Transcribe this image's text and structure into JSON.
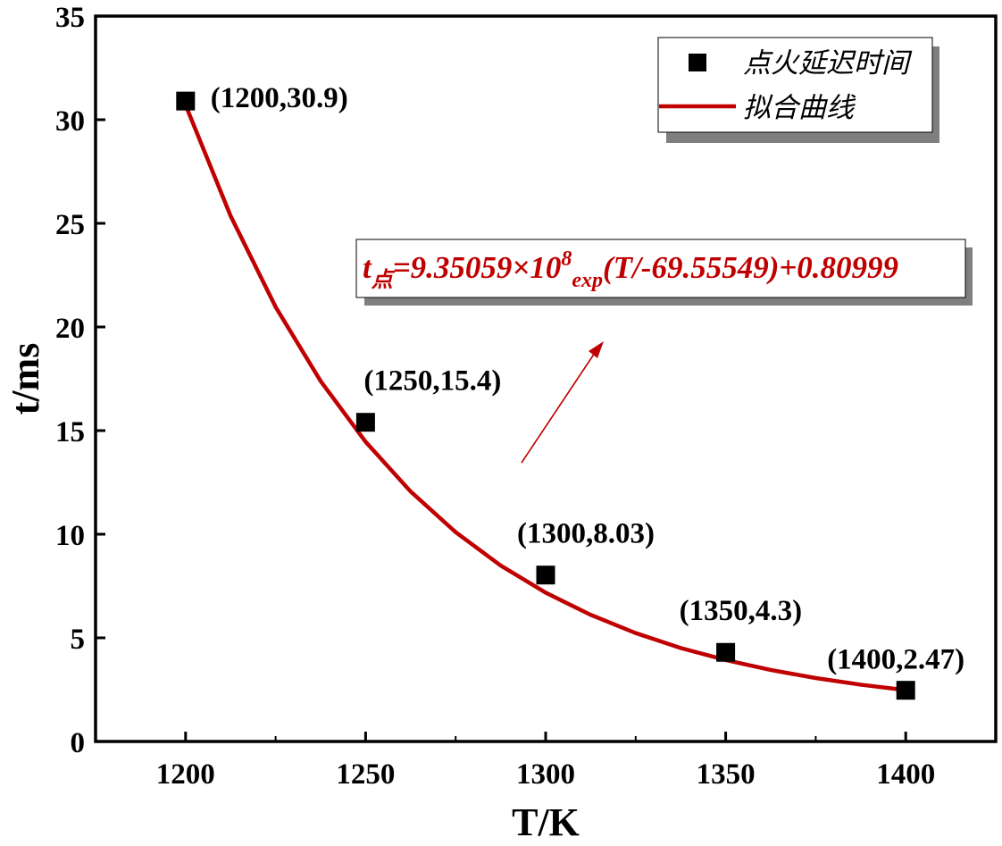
{
  "chart_data": {
    "type": "scatter",
    "xlabel": "T/K",
    "ylabel": "t/ms",
    "xlim": [
      1175,
      1425
    ],
    "ylim": [
      0,
      35
    ],
    "xticks": [
      1200,
      1250,
      1300,
      1350,
      1400
    ],
    "yticks": [
      0,
      5,
      10,
      15,
      20,
      25,
      30,
      35
    ],
    "grid": false,
    "legend_position": "top-right",
    "series": [
      {
        "name": "点火延迟时间",
        "kind": "scatter",
        "color": "#000000",
        "marker": "square",
        "x": [
          1200,
          1250,
          1300,
          1350,
          1400
        ],
        "y": [
          30.9,
          15.4,
          8.03,
          4.3,
          2.47
        ]
      },
      {
        "name": "拟合曲线",
        "kind": "line",
        "color": "#c00000",
        "x": [
          1200,
          1212.5,
          1225,
          1237.5,
          1250,
          1262.5,
          1275,
          1287.5,
          1300,
          1312.5,
          1325,
          1337.5,
          1350,
          1362.5,
          1375,
          1387.5,
          1400
        ],
        "y": [
          30.71,
          25.36,
          20.97,
          17.39,
          14.46,
          12.06,
          10.1,
          8.49,
          7.18,
          6.11,
          5.23,
          4.51,
          3.93,
          3.45,
          3.06,
          2.74,
          2.48
        ]
      }
    ],
    "point_labels": [
      "(1200,30.9)",
      "(1250,15.4)",
      "(1300,8.03)",
      "(1350,4.3)",
      "(1400,2.47)"
    ],
    "annotation": {
      "t": "t",
      "sub": "点",
      "mid": "=9.35059×10",
      "sup": "8",
      "exp": "exp",
      "tail": "(T/-69.55549)+0.80999",
      "color": "#c00000"
    }
  }
}
